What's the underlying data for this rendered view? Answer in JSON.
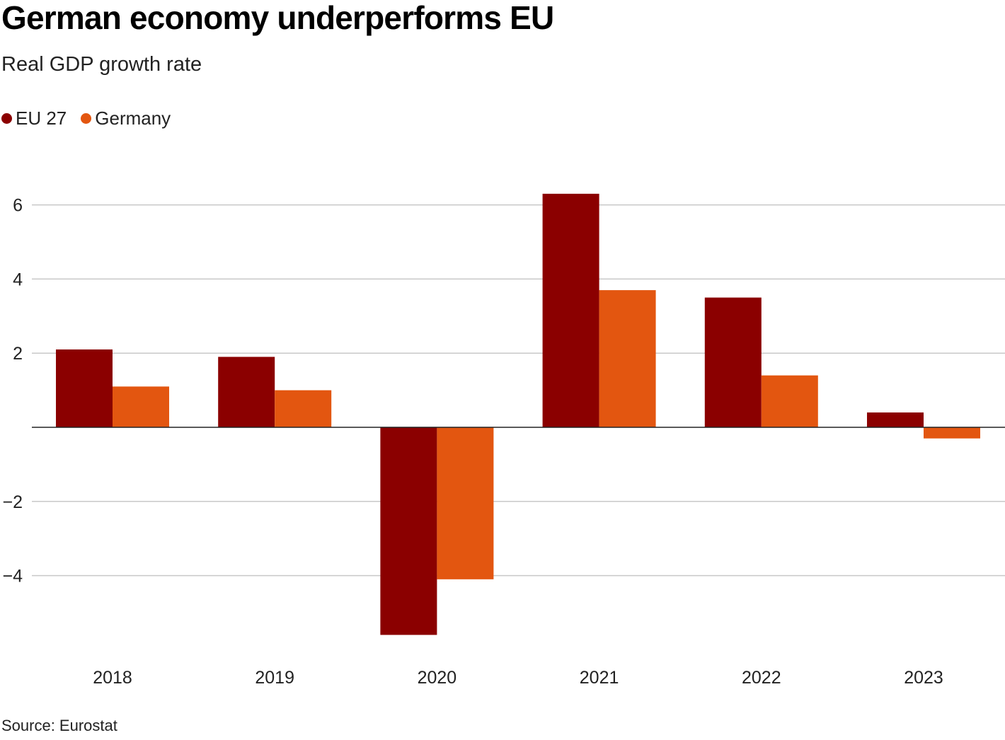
{
  "title": "German economy underperforms EU",
  "subtitle": "Real GDP growth rate",
  "source": "Source: Eurostat",
  "legend": [
    {
      "label": "EU 27",
      "color": "#8b0000"
    },
    {
      "label": "Germany",
      "color": "#e35610"
    }
  ],
  "chart_data": {
    "type": "bar",
    "title": "German economy underperforms EU",
    "subtitle": "Real GDP growth rate",
    "xlabel": "",
    "ylabel": "",
    "categories": [
      "2018",
      "2019",
      "2020",
      "2021",
      "2022",
      "2023"
    ],
    "series": [
      {
        "name": "EU 27",
        "color": "#8b0000",
        "values": [
          2.1,
          1.9,
          -5.6,
          6.3,
          3.5,
          0.4
        ]
      },
      {
        "name": "Germany",
        "color": "#e35610",
        "values": [
          1.1,
          1.0,
          -4.1,
          3.7,
          1.4,
          -0.3
        ]
      }
    ],
    "ylim": [
      -6,
      6.4
    ],
    "yticks": [
      6,
      4,
      2,
      -2,
      -4
    ],
    "ytick_labels": [
      "6",
      "4",
      "2",
      "−2",
      "−4"
    ],
    "grid": true,
    "legend_position": "top-left"
  }
}
